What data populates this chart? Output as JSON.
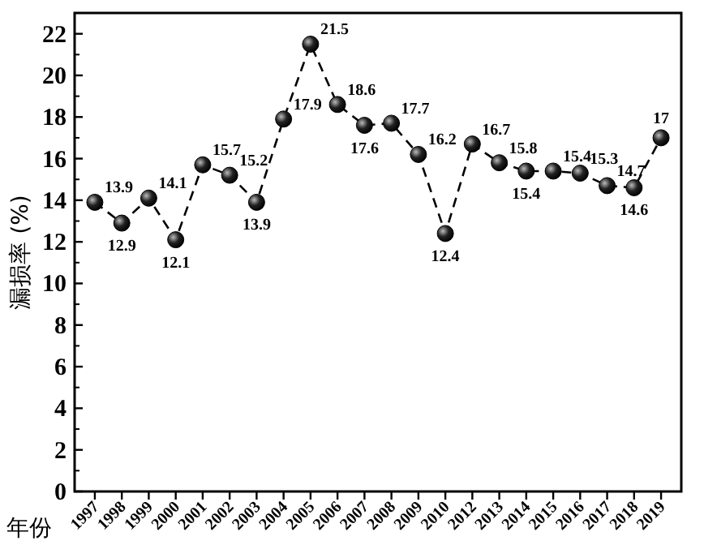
{
  "chart_data": {
    "type": "line",
    "xlabel": "年份",
    "ylabel": "漏损率 (%)",
    "categories": [
      "1997",
      "1998",
      "1999",
      "2000",
      "2001",
      "2002",
      "2003",
      "2004",
      "2005",
      "2006",
      "2007",
      "2008",
      "2009",
      "2010",
      "2012",
      "2013",
      "2014",
      "2015",
      "2016",
      "2017",
      "2018",
      "2019"
    ],
    "series": [
      {
        "color": "#000000",
        "values": [
          13.9,
          12.9,
          14.1,
          12.1,
          15.7,
          15.2,
          13.9,
          17.9,
          21.5,
          18.6,
          17.6,
          17.7,
          16.2,
          12.4,
          16.7,
          15.8,
          15.4,
          15.4,
          15.3,
          14.7,
          14.6,
          17
        ]
      }
    ],
    "ylim": [
      0,
      23
    ],
    "yticks": [
      0,
      2,
      4,
      6,
      8,
      10,
      12,
      14,
      16,
      18,
      20,
      22
    ],
    "data_labels": true,
    "marker": "circle",
    "line_style": "dashed",
    "grid": false
  }
}
